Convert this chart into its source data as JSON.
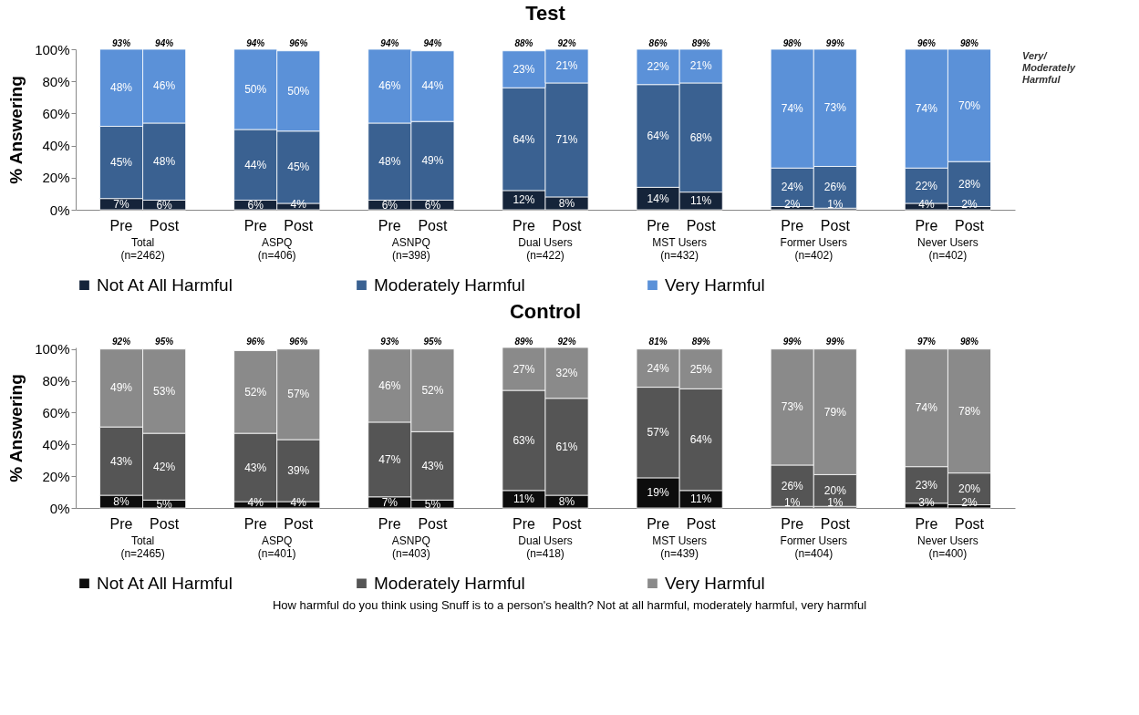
{
  "chart_data": [
    {
      "type": "bar",
      "title": "Test",
      "ylabel": "% Answering",
      "stacked": true,
      "legend": "bottom",
      "categories": [
        "Pre",
        "Post",
        "Pre",
        "Post",
        "Pre",
        "Post",
        "Pre",
        "Post",
        "Pre",
        "Post",
        "Pre",
        "Post",
        "Pre",
        "Post"
      ],
      "annotations": [
        "Total (n=2462)",
        "ASPQ (n=406)",
        "ASNPQ (n=398)",
        "Dual Users (n=422)",
        "MST Users (n=432)",
        "Former Users (n=402)",
        "Never Users (n=402)",
        "93%",
        "94%",
        "94%",
        "96%",
        "94%",
        "94%",
        "88%",
        "92%",
        "86%",
        "89%",
        "98%",
        "99%",
        "96%",
        "98%",
        "Very/ Moderately Harmful"
      ],
      "ylim": [
        0,
        100
      ],
      "yticks": [
        {
          "value": 0,
          "label": "0%"
        },
        {
          "value": 20,
          "label": "20%"
        },
        {
          "value": 40,
          "label": "40%"
        },
        {
          "value": 60,
          "label": "60%"
        },
        {
          "value": 80,
          "label": "80%"
        },
        {
          "value": 100,
          "label": "100%"
        }
      ],
      "series": [
        {
          "name": "Not At All Harmful",
          "color": "#15243a",
          "values": [
            7,
            6,
            6,
            4,
            6,
            6,
            12,
            8,
            14,
            11,
            2,
            1,
            4,
            2
          ],
          "value_labels": [
            "7%",
            "6%",
            "6%",
            "4%",
            "6%",
            "6%",
            "12%",
            "8%",
            "14%",
            "11%",
            "2%",
            "1%",
            "4%",
            "2%"
          ]
        },
        {
          "name": "Moderately Harmful",
          "color": "#3a6191",
          "values": [
            45,
            48,
            44,
            45,
            48,
            49,
            64,
            71,
            64,
            68,
            24,
            26,
            22,
            28
          ],
          "value_labels": [
            "45%",
            "48%",
            "44%",
            "45%",
            "48%",
            "49%",
            "64%",
            "71%",
            "64%",
            "68%",
            "24%",
            "26%",
            "22%",
            "28%"
          ]
        },
        {
          "name": "Very Harmful",
          "color": "#5b91d8",
          "values": [
            48,
            46,
            50,
            50,
            46,
            44,
            23,
            21,
            22,
            21,
            74,
            73,
            74,
            70
          ],
          "value_labels": [
            "48%",
            "46%",
            "50%",
            "50%",
            "46%",
            "44%",
            "23%",
            "21%",
            "22%",
            "21%",
            "74%",
            "73%",
            "74%",
            "70%"
          ]
        }
      ]
    },
    {
      "type": "bar",
      "title": "Control",
      "ylabel": "% Answering",
      "stacked": true,
      "legend": "bottom",
      "categories": [
        "Pre",
        "Post",
        "Pre",
        "Post",
        "Pre",
        "Post",
        "Pre",
        "Post",
        "Pre",
        "Post",
        "Pre",
        "Post",
        "Pre",
        "Post"
      ],
      "annotations": [
        "Total (n=2465)",
        "ASPQ (n=401)",
        "ASNPQ (n=403)",
        "Dual Users (n=418)",
        "MST Users (n=439)",
        "Former Users (n=404)",
        "Never Users (n=400)",
        "92%",
        "95%",
        "96%",
        "96%",
        "93%",
        "95%",
        "89%",
        "92%",
        "81%",
        "89%",
        "99%",
        "99%",
        "97%",
        "98%",
        "How harmful do you think using Snuff is to a person's health?  Not at all harmful, moderately harmful, very harmful"
      ],
      "ylim": [
        0,
        101
      ],
      "yticks": [
        {
          "value": 0,
          "label": "0%"
        },
        {
          "value": 20,
          "label": "20%"
        },
        {
          "value": 40,
          "label": "40%"
        },
        {
          "value": 60,
          "label": "60%"
        },
        {
          "value": 80,
          "label": "80%"
        },
        {
          "value": 100,
          "label": "100%"
        }
      ],
      "series": [
        {
          "name": "Not At All Harmful",
          "color": "#0d0d0d",
          "values": [
            8,
            5,
            4,
            4,
            7,
            5,
            11,
            8,
            19,
            11,
            1,
            1,
            3,
            2
          ],
          "value_labels": [
            "8%",
            "5%",
            "4%",
            "4%",
            "7%",
            "5%",
            "11%",
            "8%",
            "19%",
            "11%",
            "1%",
            "1%",
            "3%",
            "2%"
          ]
        },
        {
          "name": "Moderately Harmful",
          "color": "#555555",
          "values": [
            43,
            42,
            43,
            39,
            47,
            43,
            63,
            61,
            57,
            64,
            26,
            20,
            23,
            20
          ],
          "value_labels": [
            "43%",
            "42%",
            "43%",
            "39%",
            "47%",
            "43%",
            "63%",
            "61%",
            "57%",
            "64%",
            "26%",
            "20%",
            "23%",
            "20%"
          ]
        },
        {
          "name": "Very Harmful",
          "color": "#8a8a8a",
          "values": [
            49,
            53,
            52,
            57,
            46,
            52,
            27,
            32,
            24,
            25,
            73,
            79,
            74,
            78
          ],
          "value_labels": [
            "49%",
            "53%",
            "52%",
            "57%",
            "46%",
            "52%",
            "27%",
            "32%",
            "24%",
            "25%",
            "73%",
            "79%",
            "74%",
            "78%"
          ]
        }
      ]
    }
  ]
}
